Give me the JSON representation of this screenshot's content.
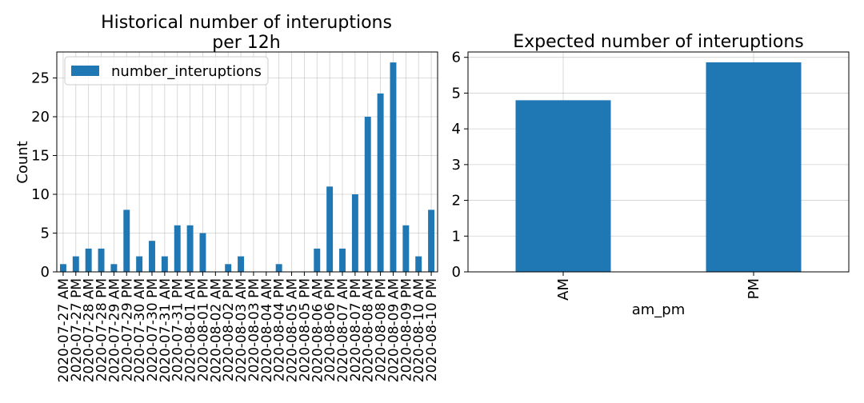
{
  "chart_data": [
    {
      "type": "bar",
      "title": "Historical number of interuptions\nper 12h",
      "xlabel": "",
      "ylabel": "Count",
      "ylim": [
        0,
        28.35
      ],
      "yticks": [
        0,
        5,
        10,
        15,
        20,
        25
      ],
      "grid": true,
      "legend": "top-left",
      "categories": [
        "2020-07-27 AM",
        "2020-07-27 PM",
        "2020-07-28 AM",
        "2020-07-28 PM",
        "2020-07-29 AM",
        "2020-07-29 PM",
        "2020-07-30 AM",
        "2020-07-30 PM",
        "2020-07-31 AM",
        "2020-07-31 PM",
        "2020-08-01 AM",
        "2020-08-01 PM",
        "2020-08-02 AM",
        "2020-08-02 PM",
        "2020-08-03 AM",
        "2020-08-03 PM",
        "2020-08-04 AM",
        "2020-08-04 PM",
        "2020-08-05 AM",
        "2020-08-05 PM",
        "2020-08-06 AM",
        "2020-08-06 PM",
        "2020-08-07 AM",
        "2020-08-07 PM",
        "2020-08-08 AM",
        "2020-08-08 PM",
        "2020-08-09 AM",
        "2020-08-09 PM",
        "2020-08-10 AM",
        "2020-08-10 PM"
      ],
      "series": [
        {
          "name": "number_interuptions",
          "color": "#1f77b4",
          "values": [
            1,
            2,
            3,
            3,
            1,
            8,
            2,
            4,
            2,
            6,
            6,
            5,
            0,
            1,
            2,
            0,
            0,
            1,
            0,
            0,
            3,
            11,
            3,
            10,
            20,
            23,
            27,
            6,
            2,
            8
          ]
        }
      ]
    },
    {
      "type": "bar",
      "title": "Expected number of interuptions",
      "xlabel": "am_pm",
      "ylabel": "",
      "ylim": [
        0,
        6.15
      ],
      "yticks": [
        0,
        1,
        2,
        3,
        4,
        5,
        6
      ],
      "grid": true,
      "categories": [
        "AM",
        "PM"
      ],
      "series": [
        {
          "color": "#1f77b4",
          "values": [
            4.8,
            5.86
          ]
        }
      ]
    }
  ]
}
